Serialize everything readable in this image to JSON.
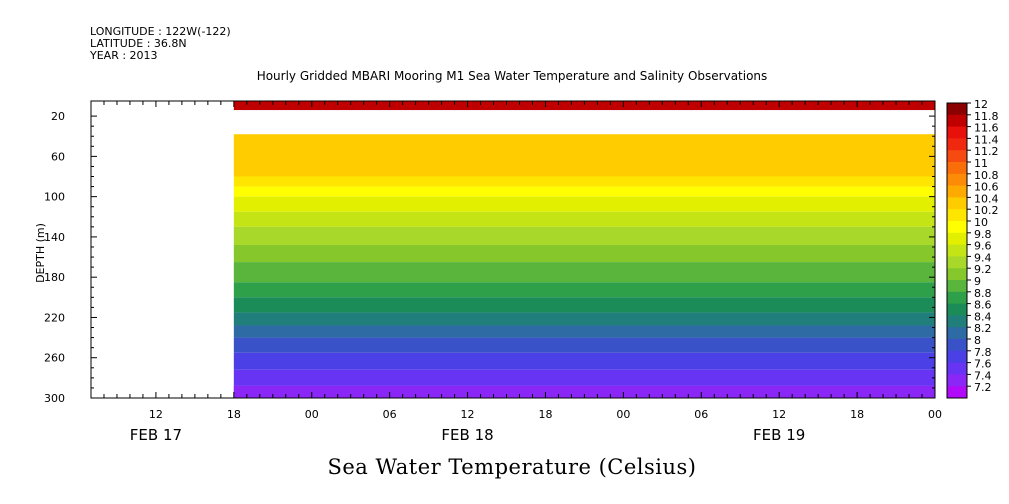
{
  "header": {
    "longitude": "LONGITUDE : 122W(-122)",
    "latitude": "LATITUDE : 36.8N",
    "year": "YEAR : 2013"
  },
  "chart_data": {
    "type": "heatmap",
    "title": "Hourly Gridded MBARI Mooring M1 Sea Water Temperature and Salinity Observations",
    "xlabel": "Sea Water Temperature (Celsius)",
    "ylabel": "DEPTH (m)",
    "x_hour_ticks": [
      "12",
      "18",
      "00",
      "06",
      "12",
      "18",
      "00",
      "06",
      "12",
      "18",
      "00"
    ],
    "x_tick_hours_since_feb17_00": [
      12,
      18,
      24,
      30,
      36,
      42,
      48,
      54,
      60,
      66,
      72
    ],
    "x_date_labels": [
      "FEB 17",
      "FEB 18",
      "FEB 19"
    ],
    "xlim_hours_since_feb17_00": [
      7,
      72
    ],
    "data_start_hours_since_feb17_00": [
      18
    ],
    "y_ticks": [
      20,
      60,
      100,
      140,
      180,
      220,
      260,
      300
    ],
    "ylim": [
      5,
      300
    ],
    "y_reversed": true,
    "gap_depth_range_m": [
      14,
      38
    ],
    "colorbar_levels": [
      "12",
      "11.8",
      "11.6",
      "11.4",
      "11.2",
      "11",
      "10.8",
      "10.6",
      "10.4",
      "10.2",
      "10",
      "9.8",
      "9.6",
      "9.4",
      "9.2",
      "9",
      "8.8",
      "8.6",
      "8.4",
      "8.2",
      "8",
      "7.8",
      "7.6",
      "7.4",
      "7.2"
    ],
    "colorbar_colors": [
      "#8b0000",
      "#c00000",
      "#e8100a",
      "#f02810",
      "#f54a10",
      "#fa6e0a",
      "#fc8c08",
      "#ffaa00",
      "#ffcc00",
      "#ffe600",
      "#ffff00",
      "#e2f000",
      "#c4e416",
      "#a8d82a",
      "#86c82c",
      "#5ab53c",
      "#2ea049",
      "#1b8c58",
      "#207f7a",
      "#2e6aa4",
      "#3a52c8",
      "#4a40e6",
      "#6634f2",
      "#8a26f6",
      "#b00af8"
    ],
    "approx_isotherm_depths_m": [
      {
        "temp": 10.2,
        "depth": 80
      },
      {
        "temp": 10.0,
        "depth": 90
      },
      {
        "temp": 9.8,
        "depth": 100
      },
      {
        "temp": 9.6,
        "depth": 115
      },
      {
        "temp": 9.4,
        "depth": 130
      },
      {
        "temp": 9.2,
        "depth": 148
      },
      {
        "temp": 9.0,
        "depth": 165
      },
      {
        "temp": 8.8,
        "depth": 185
      },
      {
        "temp": 8.6,
        "depth": 200
      },
      {
        "temp": 8.4,
        "depth": 215
      },
      {
        "temp": 8.2,
        "depth": 228
      },
      {
        "temp": 8.0,
        "depth": 240
      },
      {
        "temp": 7.8,
        "depth": 255
      },
      {
        "temp": 7.6,
        "depth": 272
      },
      {
        "temp": 7.4,
        "depth": 288
      }
    ],
    "surface_band": {
      "temp": 11.8,
      "depth_range": [
        5,
        14
      ]
    },
    "upper_layer": {
      "temp": 10.4,
      "depth_range": [
        38,
        80
      ]
    }
  }
}
